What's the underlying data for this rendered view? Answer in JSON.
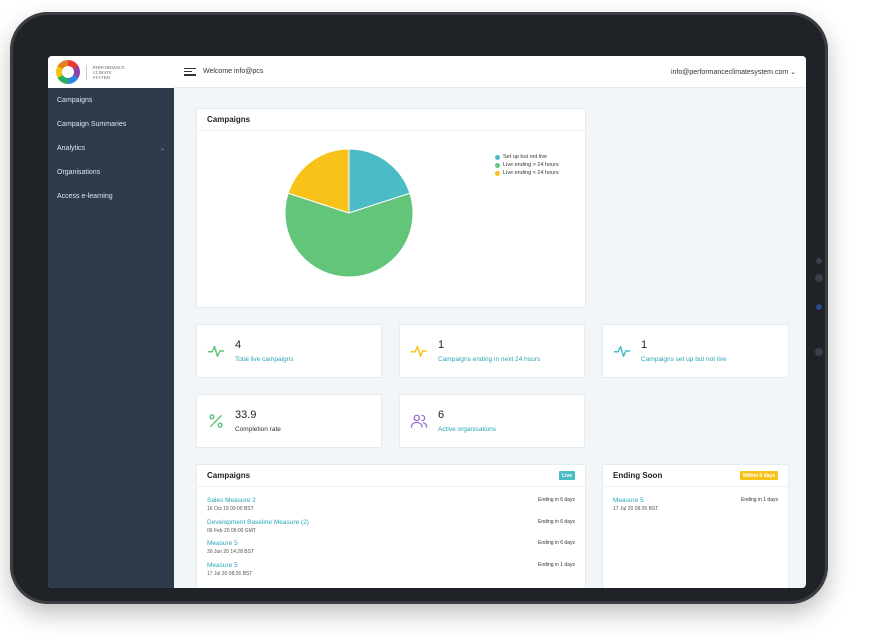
{
  "app": {
    "logo_text": [
      "PERFORMANCE",
      "CLIMATE",
      "SYSTEM"
    ],
    "welcome": "Welcome info@pcs",
    "user_email": "info@performanceclimatesystem.com",
    "user_chevron": "⌄"
  },
  "sidebar": {
    "items": [
      {
        "label": "Campaigns"
      },
      {
        "label": "Campaign Summaries"
      },
      {
        "label": "Analytics",
        "chevron": "⌄"
      },
      {
        "label": "Organisations"
      },
      {
        "label": "Access e-learning"
      }
    ]
  },
  "colors": {
    "teal": "#4bbcc6",
    "green": "#62c57a",
    "yellow": "#f8c21a",
    "sidebar": "#2f3a4b",
    "link": "#2ba6b5"
  },
  "campaigns_chart": {
    "title": "Campaigns",
    "chart_data": {
      "type": "pie",
      "series": [
        {
          "name": "Set up but not live",
          "value": 1,
          "color": "#4bbcc6"
        },
        {
          "name": "Live ending > 24 hours",
          "value": 3,
          "color": "#62c57a"
        },
        {
          "name": "Live ending < 24 hours",
          "value": 1,
          "color": "#f8c21a"
        }
      ],
      "legend_position": "top-right"
    }
  },
  "stats": [
    {
      "value": "4",
      "label": "Total live campaigns",
      "icon": "pulse-icon",
      "color": "#62c57a"
    },
    {
      "value": "1",
      "label": "Campaigns ending in next 24 hours",
      "icon": "pulse-icon",
      "color": "#f8c21a"
    },
    {
      "value": "1",
      "label": "Campaigns set up but not live",
      "icon": "pulse-icon",
      "color": "#4bbcc6"
    },
    {
      "value": "33.9",
      "label": "Completion rate",
      "icon": "percent-icon",
      "color": "#62c57a"
    },
    {
      "value": "6",
      "label": "Active organisations",
      "icon": "users-icon",
      "color": "#9b6fd0"
    }
  ],
  "campaign_list": {
    "title": "Campaigns",
    "badge": "Live",
    "items": [
      {
        "title": "Sales Measure 2",
        "date": "16 Oct 19 09:00 BST",
        "status": "Ending in 6 days"
      },
      {
        "title": "Development Baseline Measure (2)",
        "date": "06 Feb 20 09:00 GMT",
        "status": "Ending in 6 days"
      },
      {
        "title": "Measure 5",
        "date": "30 Jun 20 14:28 BST",
        "status": "Ending in 6 days"
      },
      {
        "title": "Measure 5",
        "date": "17 Jul 20 08:26 BST",
        "status": "Ending in 1 days"
      }
    ]
  },
  "ending_soon": {
    "title": "Ending Soon",
    "badge": "Within 5 days",
    "items": [
      {
        "title": "Measure 5",
        "date": "17 Jul 20 08:26 BST",
        "status": "Ending in 1 days"
      }
    ]
  }
}
